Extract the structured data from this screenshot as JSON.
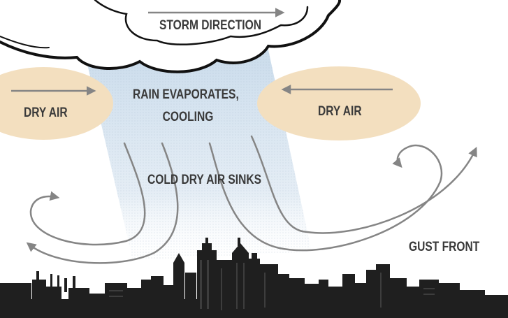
{
  "labels": {
    "storm_direction": "STORM DIRECTION",
    "dry_air_left": "DRY AIR",
    "dry_air_right": "DRY AIR",
    "rain_line1": "RAIN  EVAPORATES,",
    "rain_line2": "COOLING",
    "cold_air": "COLD  DRY AIR SINKS",
    "gust_front": "GUST FRONT"
  },
  "colors": {
    "dry_air_fill": "#f3dfbf",
    "rain_shaft": "#c9dcec",
    "skyline": "#1f1f1f",
    "arrow": "#858585",
    "cloud_outline": "#111111"
  },
  "icons": {
    "storm_cloud": "cloud-icon",
    "city_skyline": "skyline-icon"
  }
}
